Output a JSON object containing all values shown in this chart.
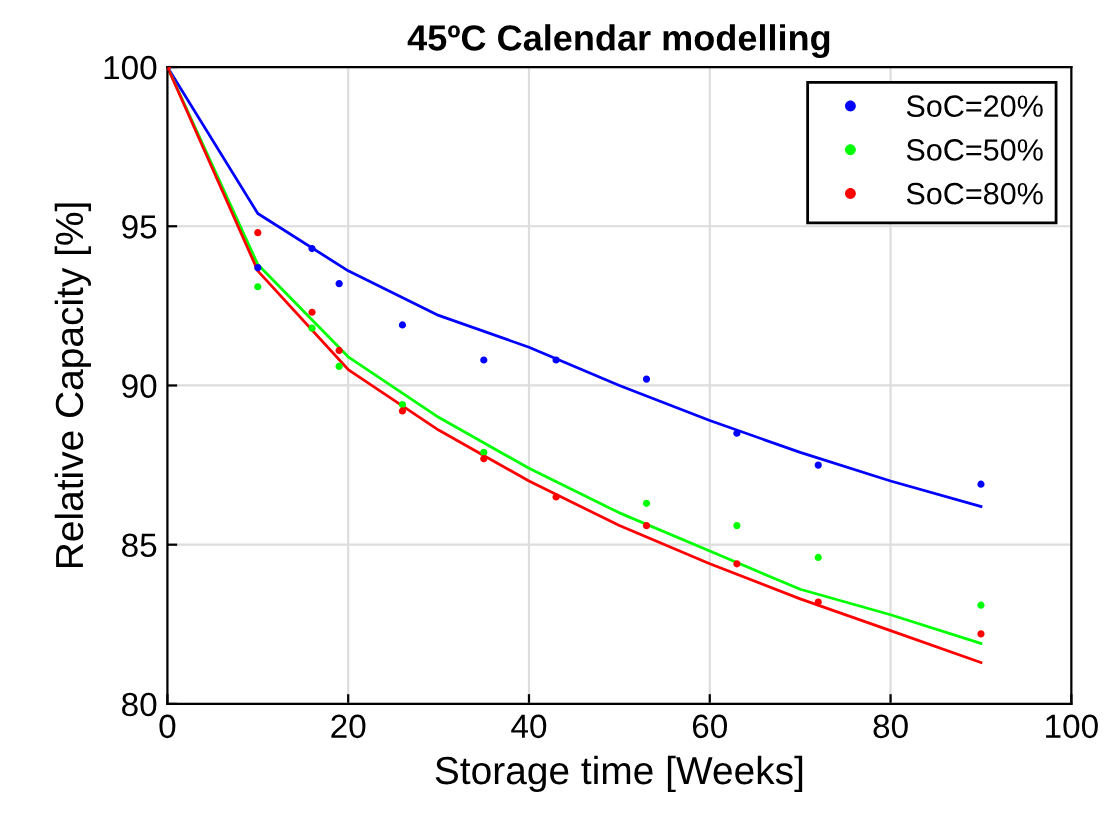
{
  "chart_data": {
    "type": "scatter",
    "title": "45ºC Calendar modelling",
    "xlabel": "Storage time [Weeks]",
    "ylabel": "Relative Capacity [%]",
    "xlim": [
      0,
      100
    ],
    "ylim": [
      80,
      100
    ],
    "xticks": [
      0,
      20,
      40,
      60,
      80,
      100
    ],
    "yticks": [
      80,
      85,
      90,
      95,
      100
    ],
    "grid": true,
    "legend": "top right",
    "marker": "circle",
    "series": [
      {
        "name": "SoC=20%",
        "color": "#0000ff",
        "x": [
          10,
          16,
          19,
          26,
          35,
          43,
          53,
          63,
          72,
          90
        ],
        "values": [
          93.7,
          94.3,
          93.2,
          91.9,
          90.8,
          90.8,
          90.2,
          88.5,
          87.5,
          86.9
        ]
      },
      {
        "name": "SoC=50%",
        "color": "#00ff00",
        "x": [
          10,
          16,
          19,
          26,
          35,
          53,
          63,
          72,
          90
        ],
        "values": [
          93.1,
          91.8,
          90.6,
          89.4,
          87.9,
          86.3,
          85.6,
          84.6,
          83.1
        ]
      },
      {
        "name": "SoC=80%",
        "color": "#ff0000",
        "x": [
          0,
          10,
          16,
          19,
          26,
          35,
          43,
          53,
          63,
          72,
          90
        ],
        "values": [
          100,
          94.8,
          92.3,
          91.1,
          89.2,
          87.7,
          86.5,
          85.6,
          84.4,
          83.2,
          82.2
        ]
      },
      {
        "type": "line",
        "marker": "none",
        "color": "#0000ff",
        "x": [
          0,
          10,
          20,
          30,
          40,
          50,
          60,
          70,
          80,
          90
        ],
        "values": [
          100,
          95.4,
          93.6,
          92.2,
          91.2,
          90.0,
          88.9,
          87.9,
          87.0,
          86.2
        ]
      },
      {
        "type": "line",
        "marker": "none",
        "color": "#00ff00",
        "x": [
          0,
          10,
          20,
          30,
          40,
          50,
          60,
          70,
          80,
          90
        ],
        "values": [
          100,
          93.8,
          90.9,
          89.0,
          87.4,
          86.0,
          84.8,
          83.6,
          82.8,
          81.9
        ]
      },
      {
        "type": "line",
        "marker": "none",
        "color": "#ff0000",
        "x": [
          0,
          10,
          20,
          30,
          40,
          50,
          60,
          70,
          80,
          90
        ],
        "values": [
          100,
          93.6,
          90.5,
          88.6,
          87.0,
          85.6,
          84.4,
          83.3,
          82.3,
          81.3
        ]
      }
    ]
  }
}
